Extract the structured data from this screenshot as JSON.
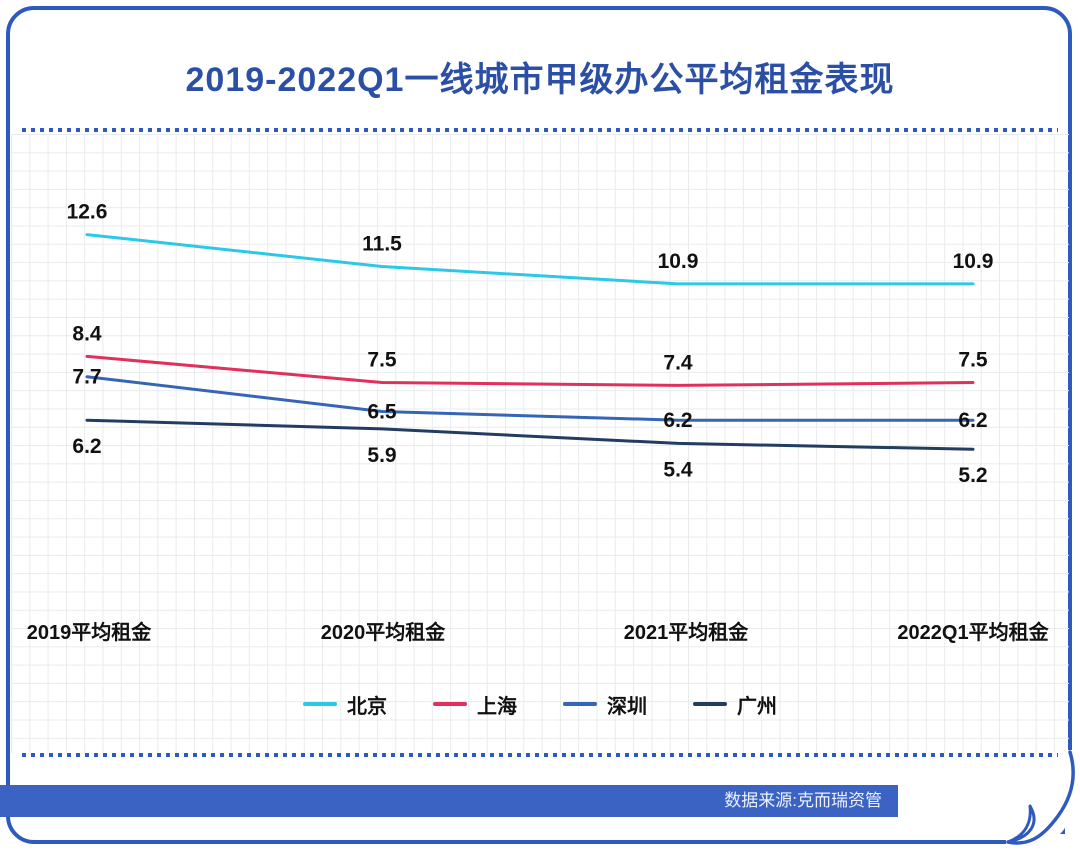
{
  "page": {
    "title": "2019-2022Q1一线城市甲级办公平均租金表现",
    "source_banner": "数据来源:克而瑞资管"
  },
  "chart_data": {
    "type": "line",
    "title": "2019-2022Q1一线城市甲级办公平均租金表现",
    "categories": [
      "2019平均租金",
      "2020平均租金",
      "2021平均租金",
      "2022Q1平均租金"
    ],
    "series": [
      {
        "name": "北京",
        "color": "#2cc8e8",
        "values": [
          12.6,
          11.5,
          10.9,
          10.9
        ],
        "label_position": "above"
      },
      {
        "name": "上海",
        "color": "#e0305c",
        "values": [
          8.4,
          7.5,
          7.4,
          7.5
        ],
        "label_position": "above"
      },
      {
        "name": "深圳",
        "color": "#3565b4",
        "values": [
          7.7,
          6.5,
          6.2,
          6.2
        ],
        "label_position": "on"
      },
      {
        "name": "广州",
        "color": "#233c62",
        "values": [
          6.2,
          5.9,
          5.4,
          5.2
        ],
        "label_position": "below"
      }
    ],
    "legend_position": "bottom",
    "legend_entries": [
      "北京",
      "上海",
      "深圳",
      "广州"
    ],
    "grid": "graph-paper background, no visible value axis",
    "y_axis": "hidden",
    "x_axis": "category labels only, no axis line",
    "data_labels_shown": true
  },
  "colors": {
    "card_border": "#2e5abf",
    "title_text": "#2b4fa5",
    "banner_background": "#3b63c4",
    "banner_text": "#edf1fb",
    "label_text": "#111111",
    "grid_line": "#e8ebee"
  }
}
